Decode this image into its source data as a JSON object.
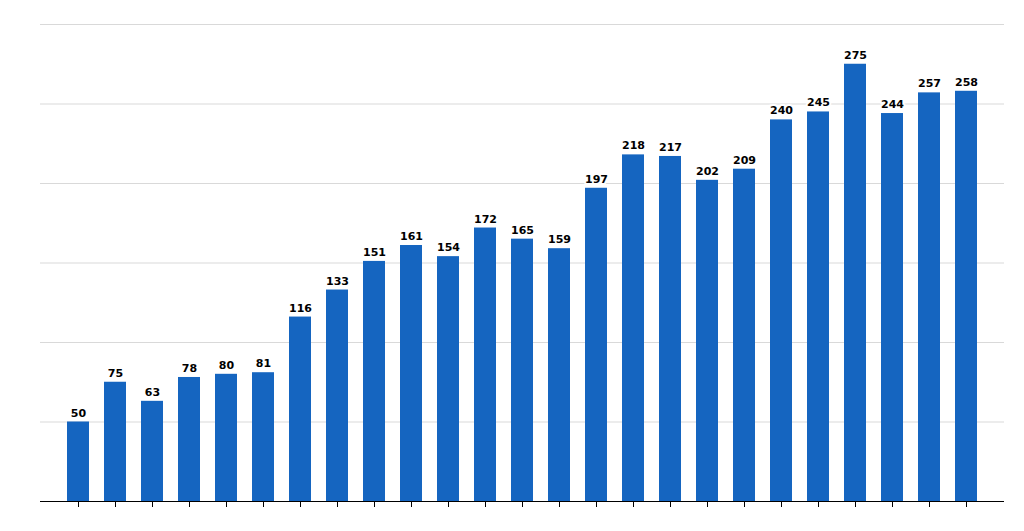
{
  "chart_data": {
    "type": "bar",
    "categories": [
      null,
      null,
      null,
      null,
      null,
      null,
      null,
      null,
      null,
      null,
      null,
      null,
      null,
      null,
      null,
      null,
      null,
      null,
      null,
      null,
      null,
      null,
      null,
      null,
      null
    ],
    "values": [
      50,
      75,
      63,
      78,
      80,
      81,
      116,
      133,
      151,
      161,
      154,
      172,
      165,
      159,
      197,
      218,
      217,
      202,
      209,
      240,
      245,
      275,
      244,
      257,
      258
    ],
    "color": "#1565C0",
    "ylim": [
      0,
      300
    ],
    "yticks": [
      0,
      50,
      100,
      150,
      200,
      250,
      300
    ],
    "grid": true,
    "data_labels": true,
    "tick_labels": false
  }
}
